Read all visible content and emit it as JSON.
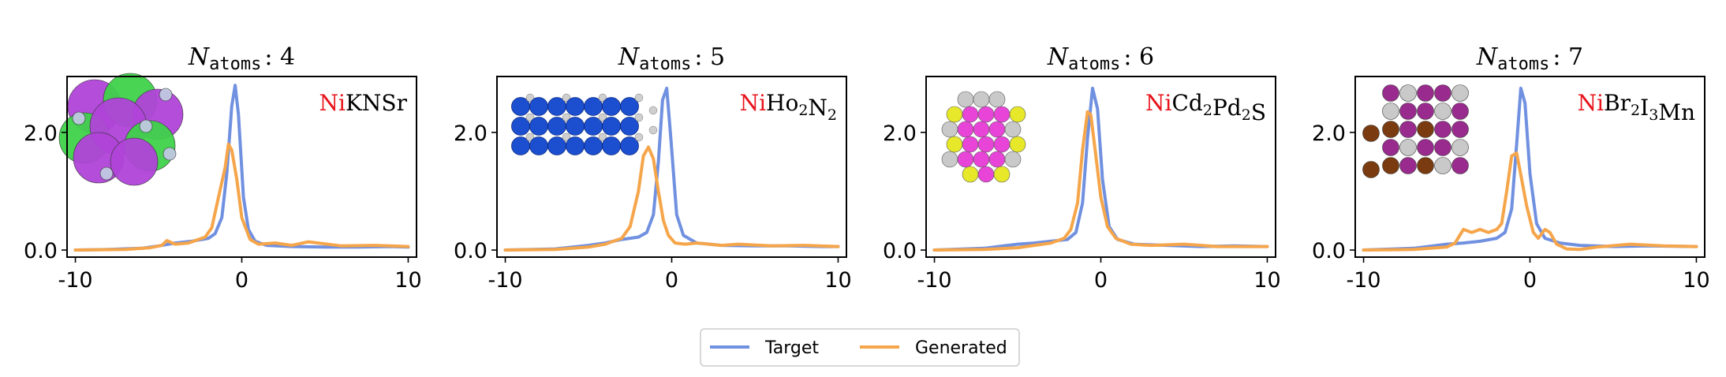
{
  "figure": {
    "legend": {
      "placement": "bottom-center",
      "entries": [
        "Target",
        "Generated"
      ]
    },
    "colors": {
      "target": "#7090e0",
      "generated": "#f5a54a",
      "element_highlight": "#e8141c"
    }
  },
  "chart_data": [
    {
      "type": "line",
      "title_prefix": "N",
      "title_sub": "atoms",
      "title_value": ": 4",
      "formula": {
        "highlight": "Ni",
        "rest": [
          [
            "KNSr",
            ""
          ]
        ]
      },
      "xlim": [
        -10.5,
        10.5
      ],
      "ylim": [
        -0.12,
        2.95
      ],
      "xticks": [
        -10,
        0,
        10
      ],
      "xticklabels": [
        "-10",
        "0",
        "10"
      ],
      "yticks": [
        0.0,
        2.0
      ],
      "yticklabels": [
        "0.0",
        "2.0"
      ],
      "grid": false,
      "structure_icon": "crystal-structure-K-Na-Sr",
      "series": [
        {
          "name": "Target",
          "x": [
            -10,
            -8,
            -6,
            -5,
            -4,
            -3,
            -2,
            -1.6,
            -1.2,
            -0.9,
            -0.6,
            -0.4,
            -0.2,
            0.1,
            0.4,
            0.8,
            1.5,
            3,
            5,
            7,
            9,
            10
          ],
          "y": [
            0.0,
            0.01,
            0.03,
            0.07,
            0.12,
            0.15,
            0.2,
            0.28,
            0.55,
            1.3,
            2.45,
            2.8,
            2.3,
            0.9,
            0.35,
            0.15,
            0.08,
            0.06,
            0.05,
            0.05,
            0.06,
            0.05
          ]
        },
        {
          "name": "Generated",
          "x": [
            -10,
            -7,
            -5.5,
            -4.8,
            -4.5,
            -4,
            -3.2,
            -2.2,
            -1.8,
            -1.4,
            -1,
            -0.8,
            -0.6,
            -0.3,
            0,
            0.5,
            1,
            2,
            3,
            4,
            6,
            8,
            10
          ],
          "y": [
            0.0,
            0.01,
            0.04,
            0.08,
            0.16,
            0.1,
            0.12,
            0.22,
            0.38,
            0.9,
            1.4,
            1.8,
            1.7,
            1.2,
            0.55,
            0.18,
            0.1,
            0.12,
            0.08,
            0.14,
            0.07,
            0.08,
            0.06
          ]
        }
      ]
    },
    {
      "type": "line",
      "title_prefix": "N",
      "title_sub": "atoms",
      "title_value": ": 5",
      "formula": {
        "highlight": "Ni",
        "rest": [
          [
            "Ho",
            "2"
          ],
          [
            "N",
            "2"
          ]
        ]
      },
      "xlim": [
        -10.5,
        10.5
      ],
      "ylim": [
        -0.12,
        2.95
      ],
      "xticks": [
        -10,
        0,
        10
      ],
      "xticklabels": [
        "-10",
        "0",
        "10"
      ],
      "yticks": [
        0.0,
        2.0
      ],
      "yticklabels": [
        "0.0",
        "2.0"
      ],
      "grid": false,
      "structure_icon": "crystal-structure-Ho-N",
      "series": [
        {
          "name": "Target",
          "x": [
            -10,
            -7,
            -5,
            -4,
            -3,
            -2,
            -1.5,
            -1.1,
            -0.8,
            -0.55,
            -0.3,
            -0.05,
            0.3,
            0.7,
            1.5,
            3,
            5,
            7,
            9,
            10
          ],
          "y": [
            0.0,
            0.02,
            0.08,
            0.12,
            0.18,
            0.22,
            0.3,
            0.6,
            1.5,
            2.55,
            2.75,
            1.9,
            0.6,
            0.25,
            0.12,
            0.08,
            0.07,
            0.07,
            0.06,
            0.06
          ]
        },
        {
          "name": "Generated",
          "x": [
            -10,
            -7,
            -5,
            -4,
            -3,
            -2.5,
            -2,
            -1.7,
            -1.4,
            -1.1,
            -0.8,
            -0.5,
            -0.2,
            0.2,
            0.8,
            1.5,
            3,
            4,
            6,
            8,
            10
          ],
          "y": [
            0.0,
            0.01,
            0.05,
            0.1,
            0.2,
            0.4,
            1.0,
            1.6,
            1.75,
            1.55,
            1.0,
            0.5,
            0.25,
            0.12,
            0.1,
            0.12,
            0.08,
            0.1,
            0.07,
            0.08,
            0.06
          ]
        }
      ]
    },
    {
      "type": "line",
      "title_prefix": "N",
      "title_sub": "atoms",
      "title_value": ": 6",
      "formula": {
        "highlight": "Ni",
        "rest": [
          [
            "Cd",
            "2"
          ],
          [
            "Pd",
            "2"
          ],
          [
            "S",
            ""
          ]
        ]
      },
      "xlim": [
        -10.5,
        10.5
      ],
      "ylim": [
        -0.12,
        2.95
      ],
      "xticks": [
        -10,
        0,
        10
      ],
      "xticklabels": [
        "-10",
        "0",
        "10"
      ],
      "yticks": [
        0.0,
        2.0
      ],
      "yticklabels": [
        "0.0",
        "2.0"
      ],
      "grid": false,
      "structure_icon": "crystal-structure-Cd-Pd-S",
      "series": [
        {
          "name": "Target",
          "x": [
            -10,
            -7,
            -5,
            -4,
            -3,
            -2,
            -1.5,
            -1.1,
            -0.8,
            -0.5,
            -0.2,
            0.1,
            0.5,
            1,
            2,
            4,
            6,
            8,
            10
          ],
          "y": [
            0.0,
            0.03,
            0.1,
            0.12,
            0.15,
            0.18,
            0.3,
            0.8,
            1.9,
            2.75,
            2.4,
            1.2,
            0.4,
            0.18,
            0.1,
            0.08,
            0.06,
            0.07,
            0.06
          ]
        },
        {
          "name": "Generated",
          "x": [
            -10,
            -7,
            -5,
            -4,
            -3,
            -2.2,
            -1.8,
            -1.4,
            -1.1,
            -0.8,
            -0.6,
            -0.3,
            0,
            0.4,
            0.9,
            1.8,
            3,
            5,
            7,
            10
          ],
          "y": [
            0.0,
            0.01,
            0.04,
            0.08,
            0.12,
            0.2,
            0.35,
            0.8,
            1.7,
            2.35,
            2.3,
            1.6,
            0.9,
            0.4,
            0.2,
            0.1,
            0.08,
            0.1,
            0.06,
            0.06
          ]
        }
      ]
    },
    {
      "type": "line",
      "title_prefix": "N",
      "title_sub": "atoms",
      "title_value": ": 7",
      "formula": {
        "highlight": "Ni",
        "rest": [
          [
            "Br",
            "2"
          ],
          [
            "I",
            "3"
          ],
          [
            "Mn",
            ""
          ]
        ]
      },
      "xlim": [
        -10.5,
        10.5
      ],
      "ylim": [
        -0.12,
        2.95
      ],
      "xticks": [
        -10,
        0,
        10
      ],
      "xticklabels": [
        "-10",
        "0",
        "10"
      ],
      "yticks": [
        0.0,
        2.0
      ],
      "yticklabels": [
        "0.0",
        "2.0"
      ],
      "grid": false,
      "structure_icon": "crystal-structure-Br-I-Mn",
      "series": [
        {
          "name": "Target",
          "x": [
            -10,
            -7,
            -5,
            -4,
            -3,
            -2,
            -1.5,
            -1.1,
            -0.8,
            -0.55,
            -0.3,
            0,
            0.4,
            0.9,
            1.8,
            3,
            5,
            7,
            10
          ],
          "y": [
            0.0,
            0.03,
            0.1,
            0.12,
            0.15,
            0.2,
            0.3,
            0.7,
            1.8,
            2.75,
            2.5,
            1.3,
            0.45,
            0.2,
            0.12,
            0.08,
            0.06,
            0.07,
            0.06
          ]
        },
        {
          "name": "Generated",
          "x": [
            -10,
            -7,
            -5,
            -4.5,
            -4,
            -3.5,
            -3,
            -2.5,
            -2,
            -1.7,
            -1.4,
            -1.1,
            -0.8,
            -0.5,
            -0.2,
            0.2,
            0.5,
            0.9,
            1.2,
            1.6,
            2.2,
            3,
            4,
            6,
            8,
            10
          ],
          "y": [
            0.0,
            0.01,
            0.05,
            0.12,
            0.35,
            0.3,
            0.35,
            0.3,
            0.35,
            0.45,
            1.0,
            1.6,
            1.65,
            1.2,
            0.75,
            0.3,
            0.2,
            0.35,
            0.3,
            0.1,
            0.02,
            0.01,
            0.05,
            0.1,
            0.07,
            0.06
          ]
        }
      ]
    }
  ]
}
